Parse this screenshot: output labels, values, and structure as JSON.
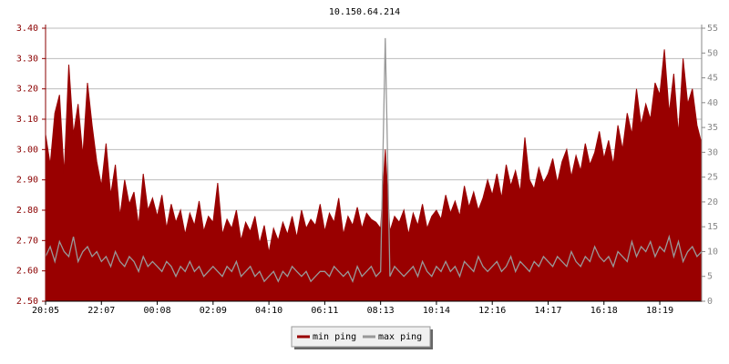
{
  "chart_data": {
    "type": "area-line",
    "title": "10.150.64.214",
    "categories": [
      "20:05",
      null,
      null,
      null,
      null,
      null,
      null,
      null,
      null,
      null,
      null,
      null,
      "22:07",
      null,
      null,
      null,
      null,
      null,
      null,
      null,
      null,
      null,
      null,
      null,
      "00:08",
      null,
      null,
      null,
      null,
      null,
      null,
      null,
      null,
      null,
      null,
      null,
      "02:09",
      null,
      null,
      null,
      null,
      null,
      null,
      null,
      null,
      null,
      null,
      null,
      "04:10",
      null,
      null,
      null,
      null,
      null,
      null,
      null,
      null,
      null,
      null,
      null,
      "06:11",
      null,
      null,
      null,
      null,
      null,
      null,
      null,
      null,
      null,
      null,
      null,
      "08:13",
      null,
      null,
      null,
      null,
      null,
      null,
      null,
      null,
      null,
      null,
      null,
      "10:14",
      null,
      null,
      null,
      null,
      null,
      null,
      null,
      null,
      null,
      null,
      null,
      "12:16",
      null,
      null,
      null,
      null,
      null,
      null,
      null,
      null,
      null,
      null,
      null,
      "14:17",
      null,
      null,
      null,
      null,
      null,
      null,
      null,
      null,
      null,
      null,
      null,
      "16:18",
      null,
      null,
      null,
      null,
      null,
      null,
      null,
      null,
      null,
      null,
      null,
      "18:19",
      null,
      null,
      null,
      null,
      null,
      null,
      null,
      null,
      null
    ],
    "series": [
      {
        "name": "min ping",
        "color": "#990000",
        "axis": "y",
        "values": [
          3.05,
          2.95,
          3.12,
          3.18,
          2.92,
          3.28,
          3.05,
          3.15,
          2.98,
          3.22,
          3.08,
          2.96,
          2.88,
          3.02,
          2.85,
          2.95,
          2.78,
          2.9,
          2.82,
          2.86,
          2.75,
          2.92,
          2.8,
          2.84,
          2.78,
          2.85,
          2.74,
          2.82,
          2.76,
          2.8,
          2.72,
          2.79,
          2.75,
          2.83,
          2.73,
          2.78,
          2.76,
          2.89,
          2.72,
          2.77,
          2.74,
          2.8,
          2.7,
          2.76,
          2.73,
          2.78,
          2.69,
          2.75,
          2.66,
          2.74,
          2.7,
          2.76,
          2.72,
          2.78,
          2.71,
          2.8,
          2.74,
          2.77,
          2.75,
          2.82,
          2.73,
          2.79,
          2.76,
          2.84,
          2.72,
          2.78,
          2.75,
          2.81,
          2.74,
          2.79,
          2.77,
          2.76,
          2.74,
          3.0,
          2.73,
          2.78,
          2.76,
          2.8,
          2.72,
          2.79,
          2.75,
          2.82,
          2.74,
          2.78,
          2.8,
          2.77,
          2.85,
          2.79,
          2.83,
          2.78,
          2.88,
          2.81,
          2.86,
          2.8,
          2.84,
          2.9,
          2.85,
          2.92,
          2.84,
          2.95,
          2.88,
          2.93,
          2.86,
          3.04,
          2.9,
          2.87,
          2.94,
          2.89,
          2.92,
          2.97,
          2.89,
          2.96,
          3.0,
          2.91,
          2.98,
          2.93,
          3.02,
          2.95,
          2.99,
          3.06,
          2.97,
          3.03,
          2.95,
          3.08,
          3.0,
          3.12,
          3.05,
          3.2,
          3.08,
          3.15,
          3.1,
          3.22,
          3.18,
          3.33,
          3.12,
          3.25,
          3.05,
          3.3,
          3.15,
          3.2,
          3.08,
          3.02
        ]
      },
      {
        "name": "max ping",
        "color": "#999999",
        "axis": "y2",
        "values": [
          9,
          11,
          8,
          12,
          10,
          9,
          13,
          8,
          10,
          11,
          9,
          10,
          8,
          9,
          7,
          10,
          8,
          7,
          9,
          8,
          6,
          9,
          7,
          8,
          7,
          6,
          8,
          7,
          5,
          7,
          6,
          8,
          6,
          7,
          5,
          6,
          7,
          6,
          5,
          7,
          6,
          8,
          5,
          6,
          7,
          5,
          6,
          4,
          5,
          6,
          4,
          6,
          5,
          7,
          6,
          5,
          6,
          4,
          5,
          6,
          6,
          5,
          7,
          6,
          5,
          6,
          4,
          7,
          5,
          6,
          7,
          5,
          6,
          53,
          5,
          7,
          6,
          5,
          6,
          7,
          5,
          8,
          6,
          5,
          7,
          6,
          8,
          6,
          7,
          5,
          8,
          7,
          6,
          9,
          7,
          6,
          7,
          8,
          6,
          7,
          9,
          6,
          8,
          7,
          6,
          8,
          7,
          9,
          8,
          7,
          9,
          8,
          7,
          10,
          8,
          7,
          9,
          8,
          11,
          9,
          8,
          9,
          7,
          10,
          9,
          8,
          12,
          9,
          11,
          10,
          12,
          9,
          11,
          10,
          13,
          9,
          12,
          8,
          10,
          11,
          9,
          10
        ]
      }
    ],
    "ylim": [
      2.5,
      3.4
    ],
    "yticks": [
      {
        "value": 2.5,
        "label": "2.50"
      },
      {
        "value": 2.6,
        "label": "2.60"
      },
      {
        "value": 2.7,
        "label": "2.70"
      },
      {
        "value": 2.8,
        "label": "2.80"
      },
      {
        "value": 2.9,
        "label": "2.90"
      },
      {
        "value": 3.0,
        "label": "3.00"
      },
      {
        "value": 3.1,
        "label": "3.10"
      },
      {
        "value": 3.2,
        "label": "3.20"
      },
      {
        "value": 3.3,
        "label": "3.30"
      },
      {
        "value": 3.4,
        "label": "3.40"
      }
    ],
    "y2lim": [
      0,
      55
    ],
    "y2ticks": [
      0,
      5,
      10,
      15,
      20,
      25,
      30,
      35,
      40,
      45,
      50,
      55
    ],
    "grid": true,
    "legend": "bottom"
  }
}
